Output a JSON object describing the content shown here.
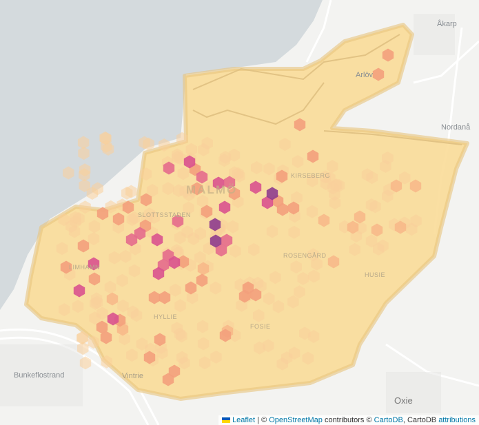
{
  "map": {
    "colors": {
      "water": "#d4dadd",
      "land": "#f3f3f1",
      "area_fill": "#f9dc98",
      "area_stroke": "#e7c47f"
    },
    "hex_color_scale": [
      "#f9cf9a",
      "#f7b98a",
      "#f3a07c",
      "#e46c8c",
      "#d9528e",
      "#8e3c8e"
    ],
    "places": [
      {
        "name": "Åkarp"
      },
      {
        "name": "Arlöv"
      },
      {
        "name": "Nordanå"
      },
      {
        "name": "Bunkeflostrand"
      },
      {
        "name": "Vintrie"
      },
      {
        "name": "Oxie"
      }
    ],
    "districts": [
      {
        "name": "Kirseberg"
      },
      {
        "name": "Slottsstaden"
      },
      {
        "name": "Limhamn"
      },
      {
        "name": "Rosengård"
      },
      {
        "name": "Husie"
      },
      {
        "name": "Hyllie"
      },
      {
        "name": "Fosie"
      }
    ],
    "city": "MALMÖ"
  },
  "attribution": {
    "leaflet": "Leaflet",
    "sep": " | © ",
    "osm": "OpenStreetMap",
    "contributors": " contributors © ",
    "cartodb": "CartoDB",
    "cartodb2": ", CartoDB ",
    "attributions": "attributions"
  }
}
